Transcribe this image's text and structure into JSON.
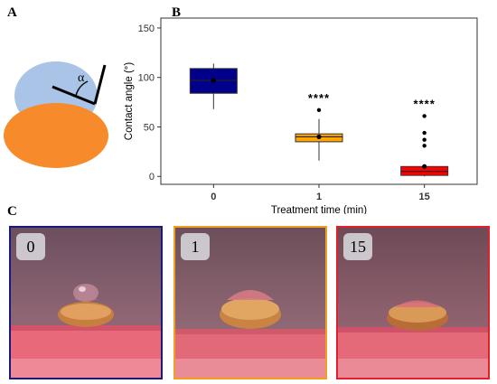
{
  "panels": {
    "a": "A",
    "b": "B",
    "c": "C"
  },
  "diagram": {
    "angle_symbol": "α"
  },
  "colors": {
    "droplet": "#a9c4e6",
    "seed": "#f78b2c",
    "box_0": "#00008b",
    "box_1": "#ffa500",
    "box_15": "#ff0000",
    "border_0": "#1a1a7a",
    "border_1": "#f0a020",
    "border_15": "#e0202c"
  },
  "chart_data": {
    "type": "box",
    "xlabel": "Treatment time (min)",
    "ylabel": "Contact angle (°)",
    "ylim": [
      -8,
      160
    ],
    "yticks": [
      0,
      50,
      100,
      150
    ],
    "categories": [
      "0",
      "1",
      "15"
    ],
    "boxes": [
      {
        "category": "0",
        "min": 68,
        "q1": 84,
        "median": 97,
        "q3": 109,
        "max": 114,
        "mean": 97,
        "outliers": [],
        "significance": ""
      },
      {
        "category": "1",
        "min": 16,
        "q1": 35,
        "median": 40,
        "q3": 43,
        "max": 58,
        "mean": 40,
        "outliers": [
          67
        ],
        "significance": "****"
      },
      {
        "category": "15",
        "min": 0,
        "q1": 1,
        "median": 5,
        "q3": 10,
        "max": 10,
        "mean": 10,
        "outliers": [
          31,
          37,
          44,
          61
        ],
        "significance": "****"
      }
    ]
  },
  "photos": [
    {
      "label": "0"
    },
    {
      "label": "1"
    },
    {
      "label": "15"
    }
  ]
}
